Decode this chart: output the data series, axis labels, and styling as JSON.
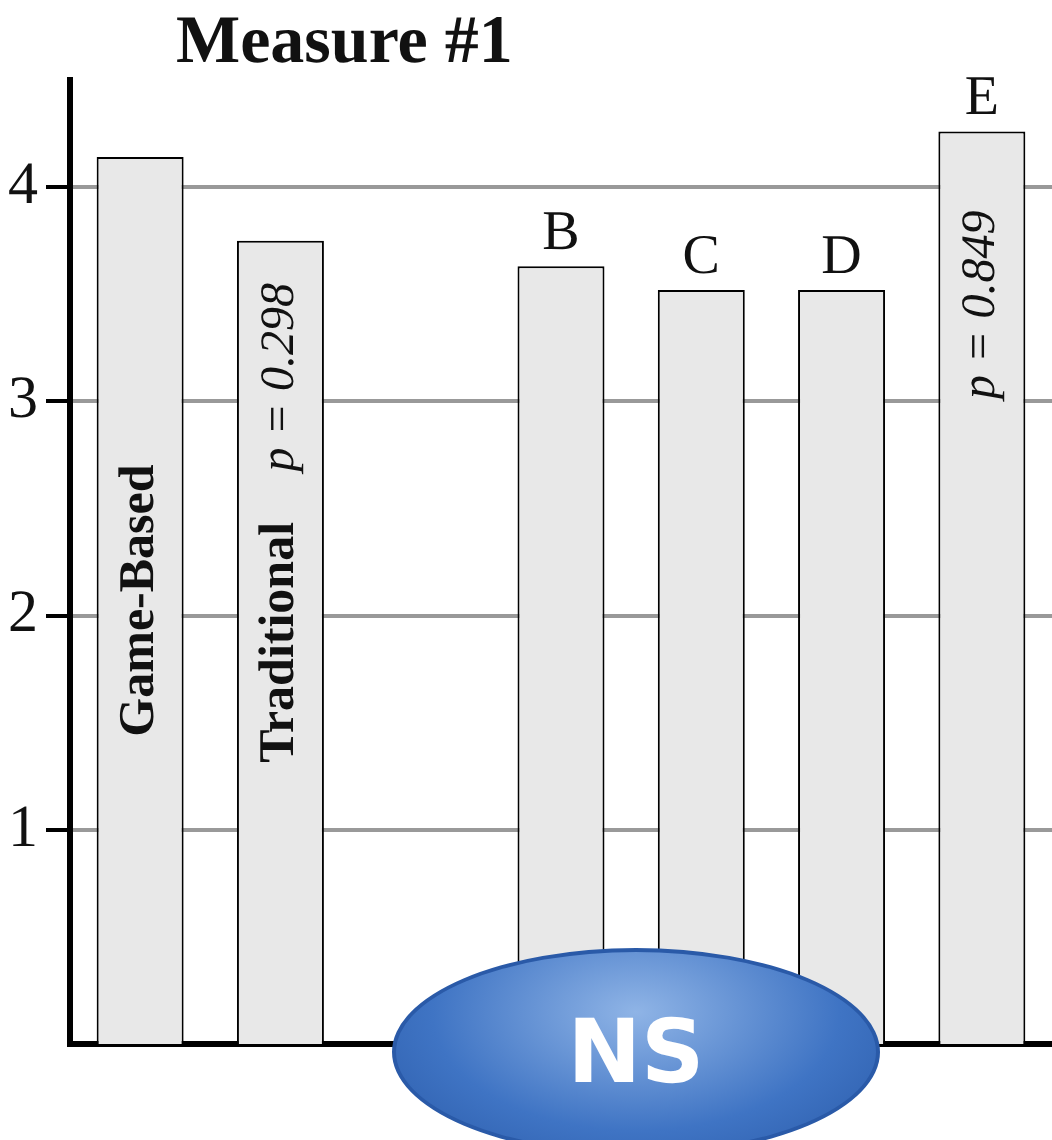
{
  "chart_data": {
    "type": "bar",
    "title": "Measure #1",
    "categories": [
      "Game-Based",
      "Traditional",
      null,
      "B",
      "C",
      "D",
      "E"
    ],
    "values": [
      4.14,
      3.75,
      null,
      3.63,
      3.52,
      3.52,
      4.26
    ],
    "color": "#e8e8e8",
    "ylim": [
      0,
      4.5
    ],
    "yticks": [
      1,
      2,
      3,
      4
    ],
    "grid": "y",
    "annotations": [
      "p = 0.298",
      "p = 0.849",
      "NS"
    ]
  }
}
